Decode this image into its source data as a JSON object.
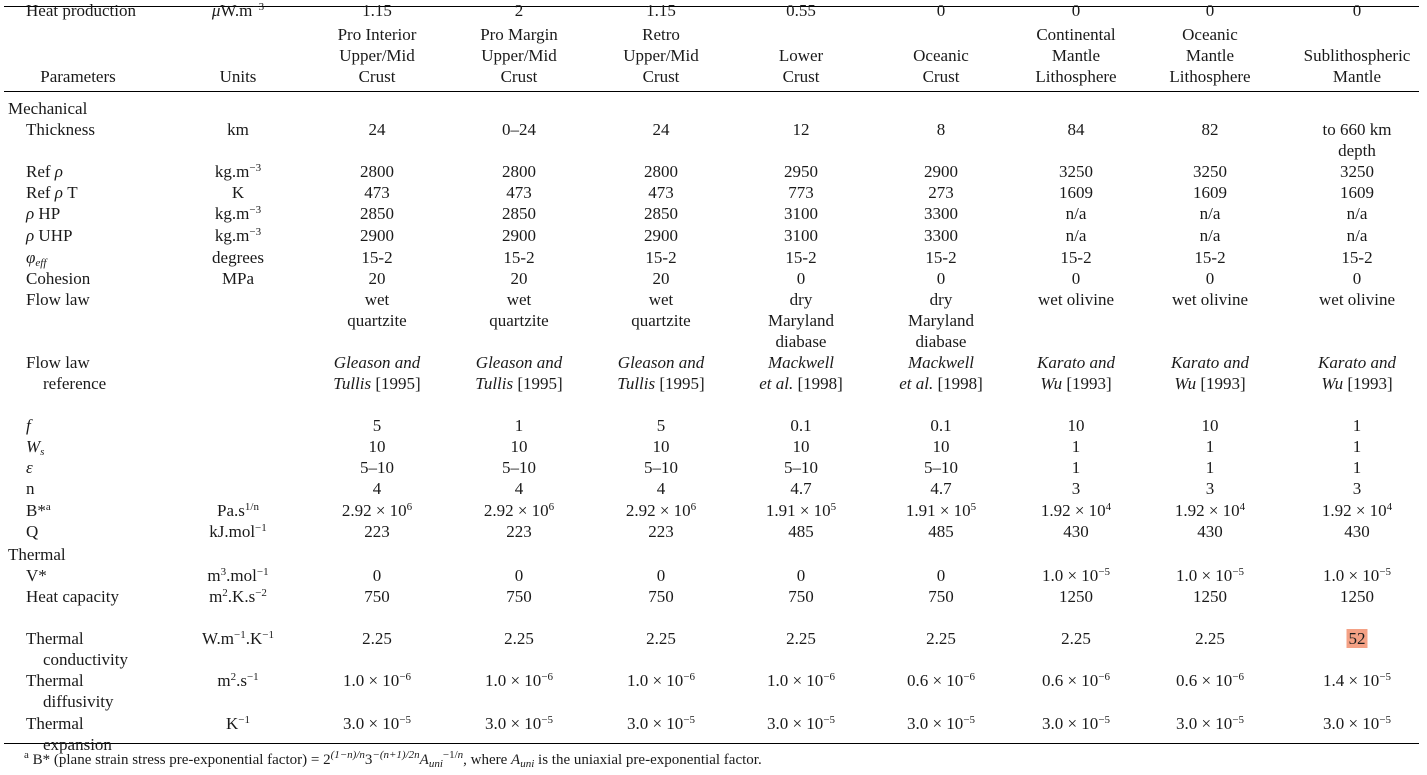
{
  "headers": [
    "Parameters",
    "Units",
    "Pro Interior\nUpper/Mid\nCrust",
    "Pro Margin\nUpper/Mid\nCrust",
    "Retro\nUpper/Mid\nCrust",
    "Lower\nCrust",
    "Oceanic\nCrust",
    "Continental\nMantle\nLithosphere",
    "Oceanic\nMantle\nLithosphere",
    "Sublithospheric\nMantle"
  ],
  "sections": {
    "mechanical": "Mechanical",
    "thermal": "Thermal"
  },
  "rows": [
    {
      "param": "Thickness",
      "unit": "km",
      "values": [
        "24",
        "0–24",
        "24",
        "12",
        "8",
        "84",
        "82",
        "to 660 km\ndepth"
      ]
    },
    {
      "param": "Ref ρ",
      "unit": "kg.m⁻³",
      "values": [
        "2800",
        "2800",
        "2800",
        "2950",
        "2900",
        "3250",
        "3250",
        "3250"
      ]
    },
    {
      "param": "Ref ρ T",
      "unit": "K",
      "values": [
        "473",
        "473",
        "473",
        "773",
        "273",
        "1609",
        "1609",
        "1609"
      ]
    },
    {
      "param": "ρ HP",
      "unit": "kg.m⁻³",
      "values": [
        "2850",
        "2850",
        "2850",
        "3100",
        "3300",
        "n/a",
        "n/a",
        "n/a"
      ]
    },
    {
      "param": "ρ UHP",
      "unit": "kg.m⁻³",
      "values": [
        "2900",
        "2900",
        "2900",
        "3100",
        "3300",
        "n/a",
        "n/a",
        "n/a"
      ]
    },
    {
      "param": "φeff",
      "unit": "degrees",
      "values": [
        "15-2",
        "15-2",
        "15-2",
        "15-2",
        "15-2",
        "15-2",
        "15-2",
        "15-2"
      ]
    },
    {
      "param": "Cohesion",
      "unit": "MPa",
      "values": [
        "20",
        "20",
        "20",
        "0",
        "0",
        "0",
        "0",
        "0"
      ]
    },
    {
      "param": "Flow law",
      "unit": "",
      "values": [
        "wet\nquartzite",
        "wet\nquartzite",
        "wet\nquartzite",
        "dry\nMaryland\ndiabase",
        "dry\nMaryland\ndiabase",
        "wet olivine",
        "wet olivine",
        "wet olivine"
      ]
    },
    {
      "param": "Flow law\n    reference",
      "unit": "",
      "values": [
        "Gleason and\nTullis [1995]",
        "Gleason and\nTullis [1995]",
        "Gleason and\nTullis [1995]",
        "Mackwell\net al. [1998]",
        "Mackwell\net al. [1998]",
        "Karato and\nWu [1993]",
        "Karato and\nWu [1993]",
        "Karato and\nWu [1993]"
      ]
    },
    {
      "param": "f",
      "unit": "",
      "values": [
        "5",
        "1",
        "5",
        "0.1",
        "0.1",
        "10",
        "10",
        "1"
      ]
    },
    {
      "param": "Ws",
      "unit": "",
      "values": [
        "10",
        "10",
        "10",
        "10",
        "10",
        "1",
        "1",
        "1"
      ]
    },
    {
      "param": "ε",
      "unit": "",
      "values": [
        "5–10",
        "5–10",
        "5–10",
        "5–10",
        "5–10",
        "1",
        "1",
        "1"
      ]
    },
    {
      "param": "n",
      "unit": "",
      "values": [
        "4",
        "4",
        "4",
        "4.7",
        "4.7",
        "3",
        "3",
        "3"
      ]
    },
    {
      "param": "B*a",
      "unit": "Pa.s1/n",
      "values": [
        "2.92 × 10⁶",
        "2.92 × 10⁶",
        "2.92 × 10⁶",
        "1.91 × 10⁵",
        "1.91 × 10⁵",
        "1.92 × 10⁴",
        "1.92 × 10⁴",
        "1.92 × 10⁴"
      ]
    },
    {
      "param": "Q",
      "unit": "kJ.mol⁻¹",
      "values": [
        "223",
        "223",
        "223",
        "485",
        "485",
        "430",
        "430",
        "430"
      ]
    },
    {
      "param": "V*",
      "unit": "m³.mol⁻¹",
      "values": [
        "0",
        "0",
        "0",
        "0",
        "0",
        "1.0 × 10⁻⁵",
        "1.0 × 10⁻⁵",
        "1.0 × 10⁻⁵"
      ]
    },
    {
      "param": "Heat capacity",
      "unit": "m².K.s⁻²",
      "values": [
        "750",
        "750",
        "750",
        "750",
        "750",
        "1250",
        "1250",
        "1250"
      ]
    },
    {
      "param": "Thermal\n    conductivity",
      "unit": "W.m⁻¹.K⁻¹",
      "values": [
        "2.25",
        "2.25",
        "2.25",
        "2.25",
        "2.25",
        "2.25",
        "2.25",
        "52"
      ]
    },
    {
      "param": "Thermal\n    diffusivity",
      "unit": "m².s⁻¹",
      "values": [
        "1.0 × 10⁻⁶",
        "1.0 × 10⁻⁶",
        "1.0 × 10⁻⁶",
        "1.0 × 10⁻⁶",
        "0.6 × 10⁻⁶",
        "0.6 × 10⁻⁶",
        "0.6 × 10⁻⁶",
        "1.4 × 10⁻⁵"
      ]
    },
    {
      "param": "Thermal\n    expansion",
      "unit": "K⁻¹",
      "values": [
        "3.0 × 10⁻⁵",
        "3.0 × 10⁻⁵",
        "3.0 × 10⁻⁵",
        "3.0 × 10⁻⁵",
        "3.0 × 10⁻⁵",
        "3.0 × 10⁻⁵",
        "3.0 × 10⁻⁵",
        "3.0 × 10⁻⁵"
      ]
    },
    {
      "param": "Heat production",
      "unit": "μW.m⁻³",
      "values": [
        "1.15",
        "2",
        "1.15",
        "0.55",
        "0",
        "0",
        "0",
        "0"
      ]
    }
  ],
  "highlight": {
    "row": 17,
    "col": 7,
    "color": "#f4a185"
  },
  "footnote": "a B* (plane strain stress pre-exponential factor) = 2^((1−n)/n) 3^(−(n+1)/2n) A_uni^(−1/n), where A_uni is the uniaxial pre-exponential factor."
}
